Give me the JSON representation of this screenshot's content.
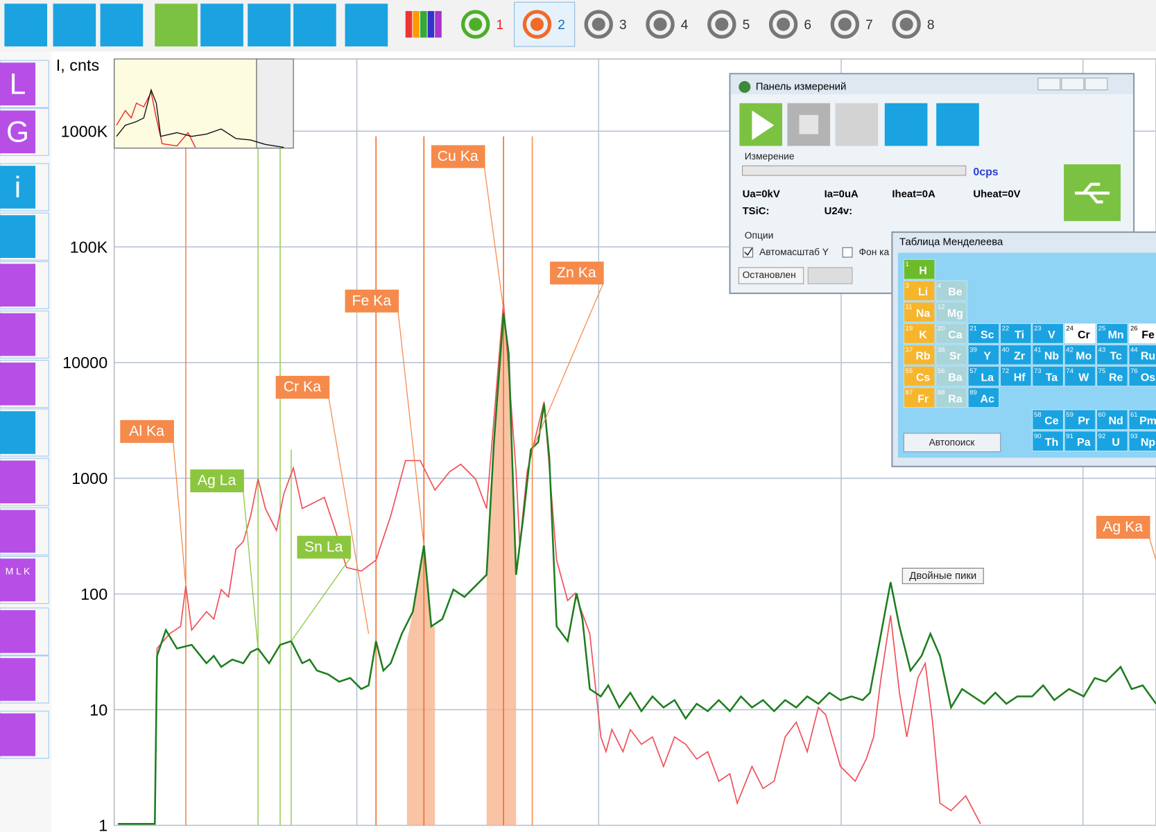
{
  "toolbar": {
    "channels": [
      "1",
      "2",
      "3",
      "4",
      "5",
      "6",
      "7",
      "8"
    ]
  },
  "sidebar": {
    "buttons": [
      "L",
      "G",
      "i",
      "M L K"
    ]
  },
  "spectrum": {
    "y_label": "I, cnts",
    "log_scale": true,
    "grid": true,
    "yticks": [
      1,
      10,
      100,
      1000,
      10000,
      {
        "value": 100000,
        "label": "100K"
      },
      {
        "value": 1000000,
        "label": "1000K"
      }
    ],
    "peak_labels": [
      {
        "text": "Al Ka",
        "color": "#f58a4b"
      },
      {
        "text": "Ag La",
        "color": "#8cc63f"
      },
      {
        "text": "Sn La",
        "color": "#8cc63f"
      },
      {
        "text": "Cr Ka",
        "color": "#f58a4b"
      },
      {
        "text": "Fe Ka",
        "color": "#f58a4b"
      },
      {
        "text": "Cu Ka",
        "color": "#f58a4b"
      },
      {
        "text": "Zn Ka",
        "color": "#f58a4b"
      },
      {
        "text": "Ag Ka",
        "color": "#f58a4b"
      }
    ],
    "tooltip": "Двойные пики"
  },
  "measure_panel": {
    "title": "Панель измерений",
    "section": "Измерение",
    "rate": "0cps",
    "readings": [
      "Ua=0kV",
      "Ia=0uA",
      "Iheat=0A",
      "Uheat=0V",
      "TSiC:",
      "U24v:"
    ],
    "options": "Опции",
    "autoscale": "Автомасштаб Y",
    "background": "Фон ка",
    "status": "Остановлен"
  },
  "periodic_panel": {
    "title": "Таблица Менделеева",
    "button": "Автопоиск",
    "elements": [
      [
        "1",
        "H"
      ],
      [
        "3",
        "Li"
      ],
      [
        "4",
        "Be"
      ],
      [
        "11",
        "Na"
      ],
      [
        "12",
        "Mg"
      ],
      [
        "19",
        "K"
      ],
      [
        "20",
        "Ca"
      ],
      [
        "21",
        "Sc"
      ],
      [
        "22",
        "Ti"
      ],
      [
        "23",
        "V"
      ],
      [
        "24",
        "Cr"
      ],
      [
        "25",
        "Mn"
      ],
      [
        "26",
        "Fe"
      ],
      [
        "37",
        "Rb"
      ],
      [
        "38",
        "Sr"
      ],
      [
        "39",
        "Y"
      ],
      [
        "40",
        "Zr"
      ],
      [
        "41",
        "Nb"
      ],
      [
        "42",
        "Mo"
      ],
      [
        "43",
        "Tc"
      ],
      [
        "44",
        "Ru"
      ],
      [
        "55",
        "Cs"
      ],
      [
        "56",
        "Ba"
      ],
      [
        "57",
        "La"
      ],
      [
        "72",
        "Hf"
      ],
      [
        "73",
        "Ta"
      ],
      [
        "74",
        "W"
      ],
      [
        "75",
        "Re"
      ],
      [
        "76",
        "Os"
      ],
      [
        "87",
        "Fr"
      ],
      [
        "88",
        "Ra"
      ],
      [
        "89",
        "Ac"
      ],
      [
        "58",
        "Ce"
      ],
      [
        "59",
        "Pr"
      ],
      [
        "60",
        "Nd"
      ],
      [
        "61",
        "Pm"
      ],
      [
        "90",
        "Th"
      ],
      [
        "91",
        "Pa"
      ],
      [
        "92",
        "U"
      ],
      [
        "93",
        "Np"
      ]
    ]
  }
}
